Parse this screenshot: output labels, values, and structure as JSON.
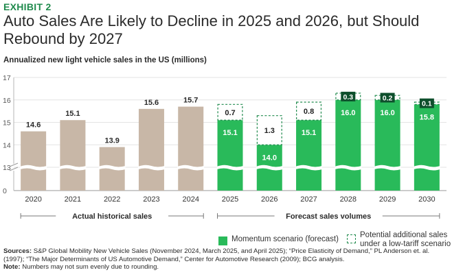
{
  "exhibit_label": "EXHIBIT 2",
  "title": "Auto Sales Are Likely to Decline in 2025 and 2026, but Should Rebound by 2027",
  "subtitle": "Annualized new light vehicle sales in the US (millions)",
  "colors": {
    "historical": "#c8b7a7",
    "momentum": "#29ba5a",
    "tariff_border": "#1f8a4c",
    "dark_label": "#0e4f2c",
    "accent": "#1f8a4c"
  },
  "chart_data": {
    "type": "bar",
    "ylabel": "Annualized new light vehicle sales in the US (millions)",
    "ylim": [
      0,
      17
    ],
    "axis_break": true,
    "yticks": [
      "0",
      "13",
      "14",
      "15",
      "16",
      "17"
    ],
    "categories": [
      "2020",
      "2021",
      "2022",
      "2023",
      "2024",
      "2025",
      "2026",
      "2027",
      "2028",
      "2029",
      "2030"
    ],
    "series": [
      {
        "name": "Actual historical sales",
        "values": [
          14.6,
          15.1,
          13.9,
          15.6,
          15.7,
          null,
          null,
          null,
          null,
          null,
          null
        ],
        "labels": [
          "14.6",
          "15.1",
          "13.9",
          "15.6",
          "15.7",
          "",
          "",
          "",
          "",
          "",
          ""
        ]
      },
      {
        "name": "Momentum scenario (forecast)",
        "values": [
          null,
          null,
          null,
          null,
          null,
          15.1,
          14.0,
          15.1,
          16.0,
          16.0,
          15.8
        ],
        "labels": [
          "",
          "",
          "",
          "",
          "",
          "15.1",
          "14.0",
          "15.1",
          "16.0",
          "16.0",
          "15.8"
        ]
      },
      {
        "name": "Potential additional sales under a low-tariff scenario",
        "values": [
          null,
          null,
          null,
          null,
          null,
          0.7,
          1.3,
          0.8,
          0.3,
          0.2,
          0.1
        ],
        "labels": [
          "",
          "",
          "",
          "",
          "",
          "0.7",
          "1.3",
          "0.8",
          "0.3",
          "0.2",
          "0.1"
        ]
      }
    ],
    "groups": [
      {
        "label": "Actual historical sales",
        "from": 0,
        "to": 4
      },
      {
        "label": "Forecast sales volumes",
        "from": 5,
        "to": 10
      }
    ]
  },
  "legend": {
    "momentum": "Momentum scenario (forecast)",
    "tariff": "Potential additional sales under a low-tariff scenario"
  },
  "footer": {
    "sources_label": "Sources:",
    "sources_text": "S&P Global Mobility New Vehicle Sales (November 2024, March 2025, and April 2025); “Price Elasticity of Demand,” PL Anderson et. al. (1997); “The Major Determinants of US Automotive Demand,” Center for Automotive Research (2009); BCG analysis.",
    "note_label": "Note:",
    "note_text": "Numbers may not sum evenly due to rounding."
  }
}
